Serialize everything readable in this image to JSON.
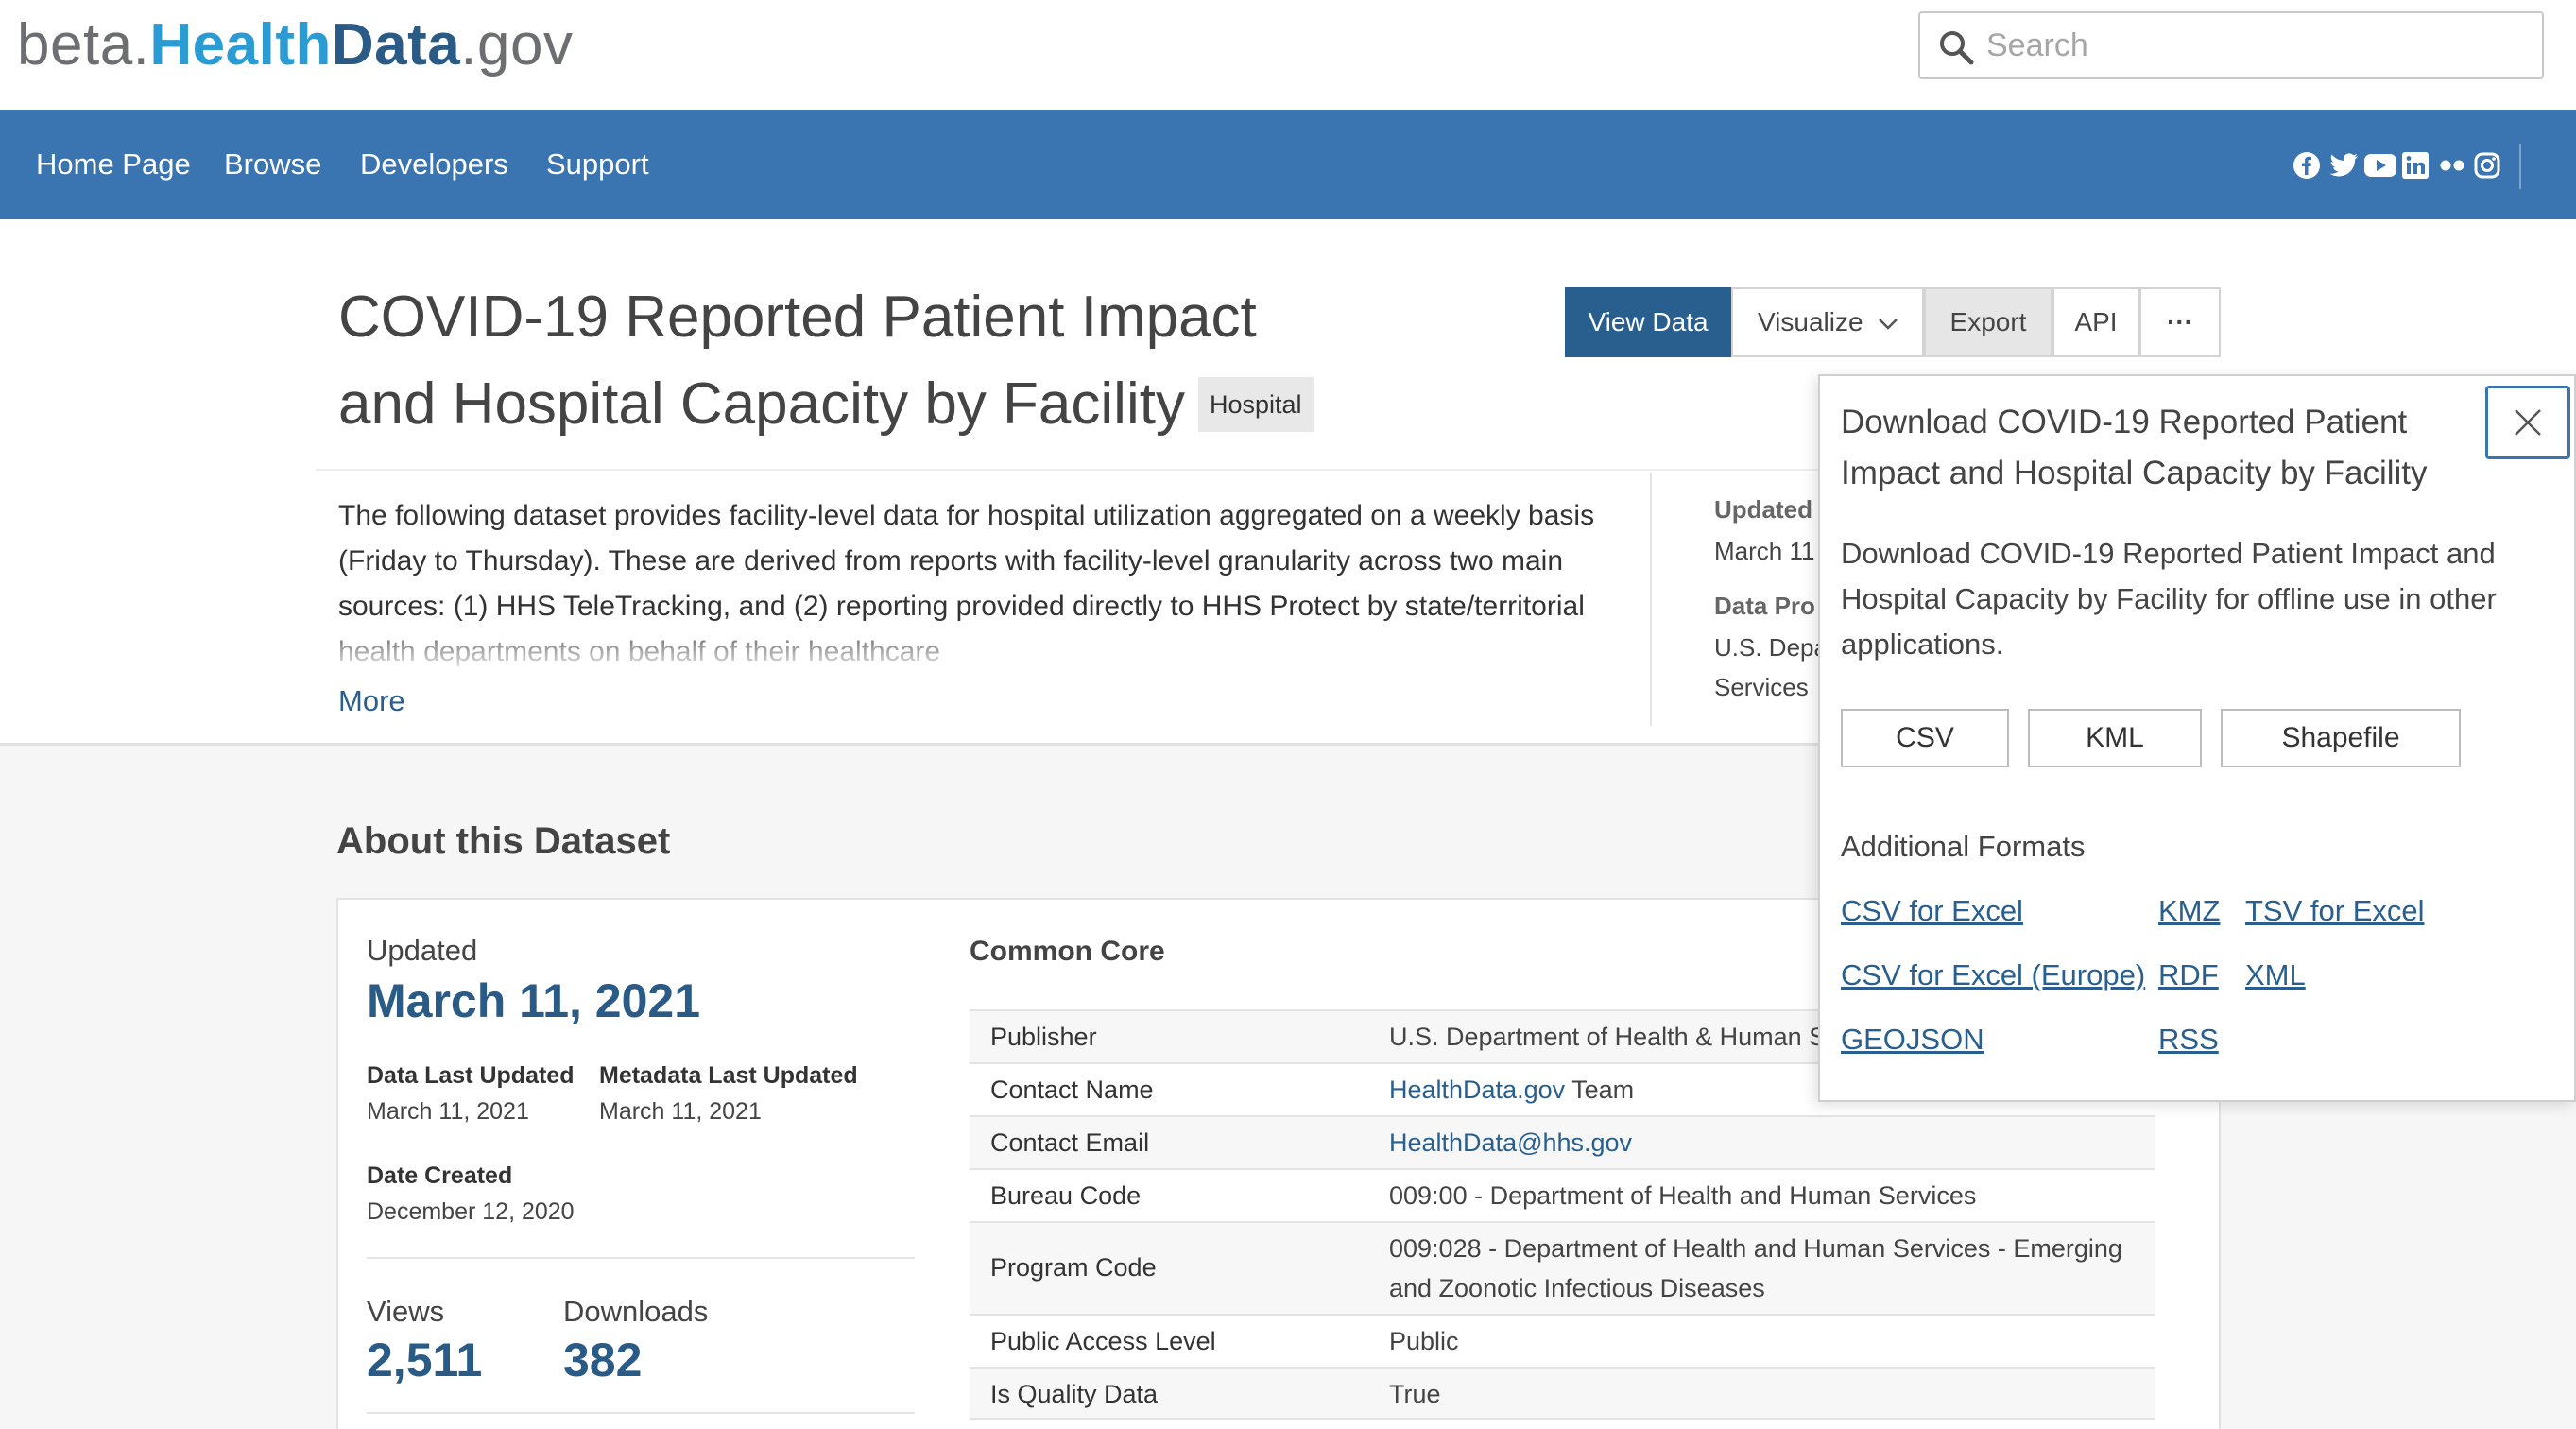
{
  "header": {
    "logo": {
      "part1": "beta.",
      "part2": "Health",
      "part3": "Data",
      "part4": ".gov"
    },
    "search": {
      "placeholder": "Search",
      "value": ""
    },
    "nav": [
      "Home Page",
      "Browse",
      "Developers",
      "Support"
    ],
    "social_icons": [
      "facebook-icon",
      "twitter-icon",
      "youtube-icon",
      "linkedin-icon",
      "flickr-icon",
      "instagram-icon"
    ]
  },
  "dataset": {
    "title": "COVID-19 Reported Patient Impact and Hospital Capacity by Facility",
    "tag": "Hospital",
    "description": "The following dataset provides facility-level data for hospital utilization aggregated on a weekly basis (Friday to Thursday). These are derived from reports with facility-level granularity across two main sources: (1) HHS TeleTracking, and (2) reporting provided directly to HHS Protect by state/territorial health departments on behalf of their healthcare",
    "more_label": "More",
    "side_meta": {
      "updated_label": "Updated",
      "updated_value": "March 11",
      "provided_label": "Data Pro",
      "provided_value1": "U.S. Depa",
      "provided_value2": "Services"
    }
  },
  "actions": {
    "view_data": "View Data",
    "visualize": "Visualize",
    "export": "Export",
    "api": "API",
    "more": "···"
  },
  "about": {
    "heading": "About this Dataset",
    "updated_label": "Updated",
    "updated_value": "March 11, 2021",
    "data_last_updated_label": "Data Last Updated",
    "data_last_updated_value": "March 11, 2021",
    "metadata_last_updated_label": "Metadata Last Updated",
    "metadata_last_updated_value": "March 11, 2021",
    "date_created_label": "Date Created",
    "date_created_value": "December 12, 2020",
    "views_label": "Views",
    "views_value": "2,511",
    "downloads_label": "Downloads",
    "downloads_value": "382"
  },
  "common_core": {
    "title": "Common Core",
    "rows": [
      {
        "key": "Publisher",
        "value": "U.S. Department of Health & Human S"
      },
      {
        "key": "Contact Name",
        "link": "HealthData.gov",
        "value": " Team"
      },
      {
        "key": "Contact Email",
        "link": "HealthData@hhs.gov",
        "value": ""
      },
      {
        "key": "Bureau Code",
        "value": "009:00 - Department of Health and Human Services"
      },
      {
        "key": "Program Code",
        "value": "009:028 - Department of Health and Human Services - Emerging and Zoonotic Infectious Diseases"
      },
      {
        "key": "Public Access Level",
        "value": "Public"
      },
      {
        "key": "Is Quality Data",
        "value": "True"
      }
    ]
  },
  "download_popover": {
    "title": "Download COVID-19 Reported Patient Impact and Hospital Capacity by Facility",
    "description": "Download COVID-19 Reported Patient Impact and Hospital Capacity by Facility for offline use in other applications.",
    "formats": [
      "CSV",
      "KML",
      "Shapefile"
    ],
    "additional_heading": "Additional Formats",
    "additional": {
      "csv_excel": "CSV for Excel",
      "kmz": "KMZ",
      "tsv_excel": "TSV for Excel",
      "csv_europe": "CSV for Excel (Europe)",
      "rdf": "RDF",
      "xml": "XML",
      "geojson": "GEOJSON",
      "rss": "RSS"
    }
  }
}
